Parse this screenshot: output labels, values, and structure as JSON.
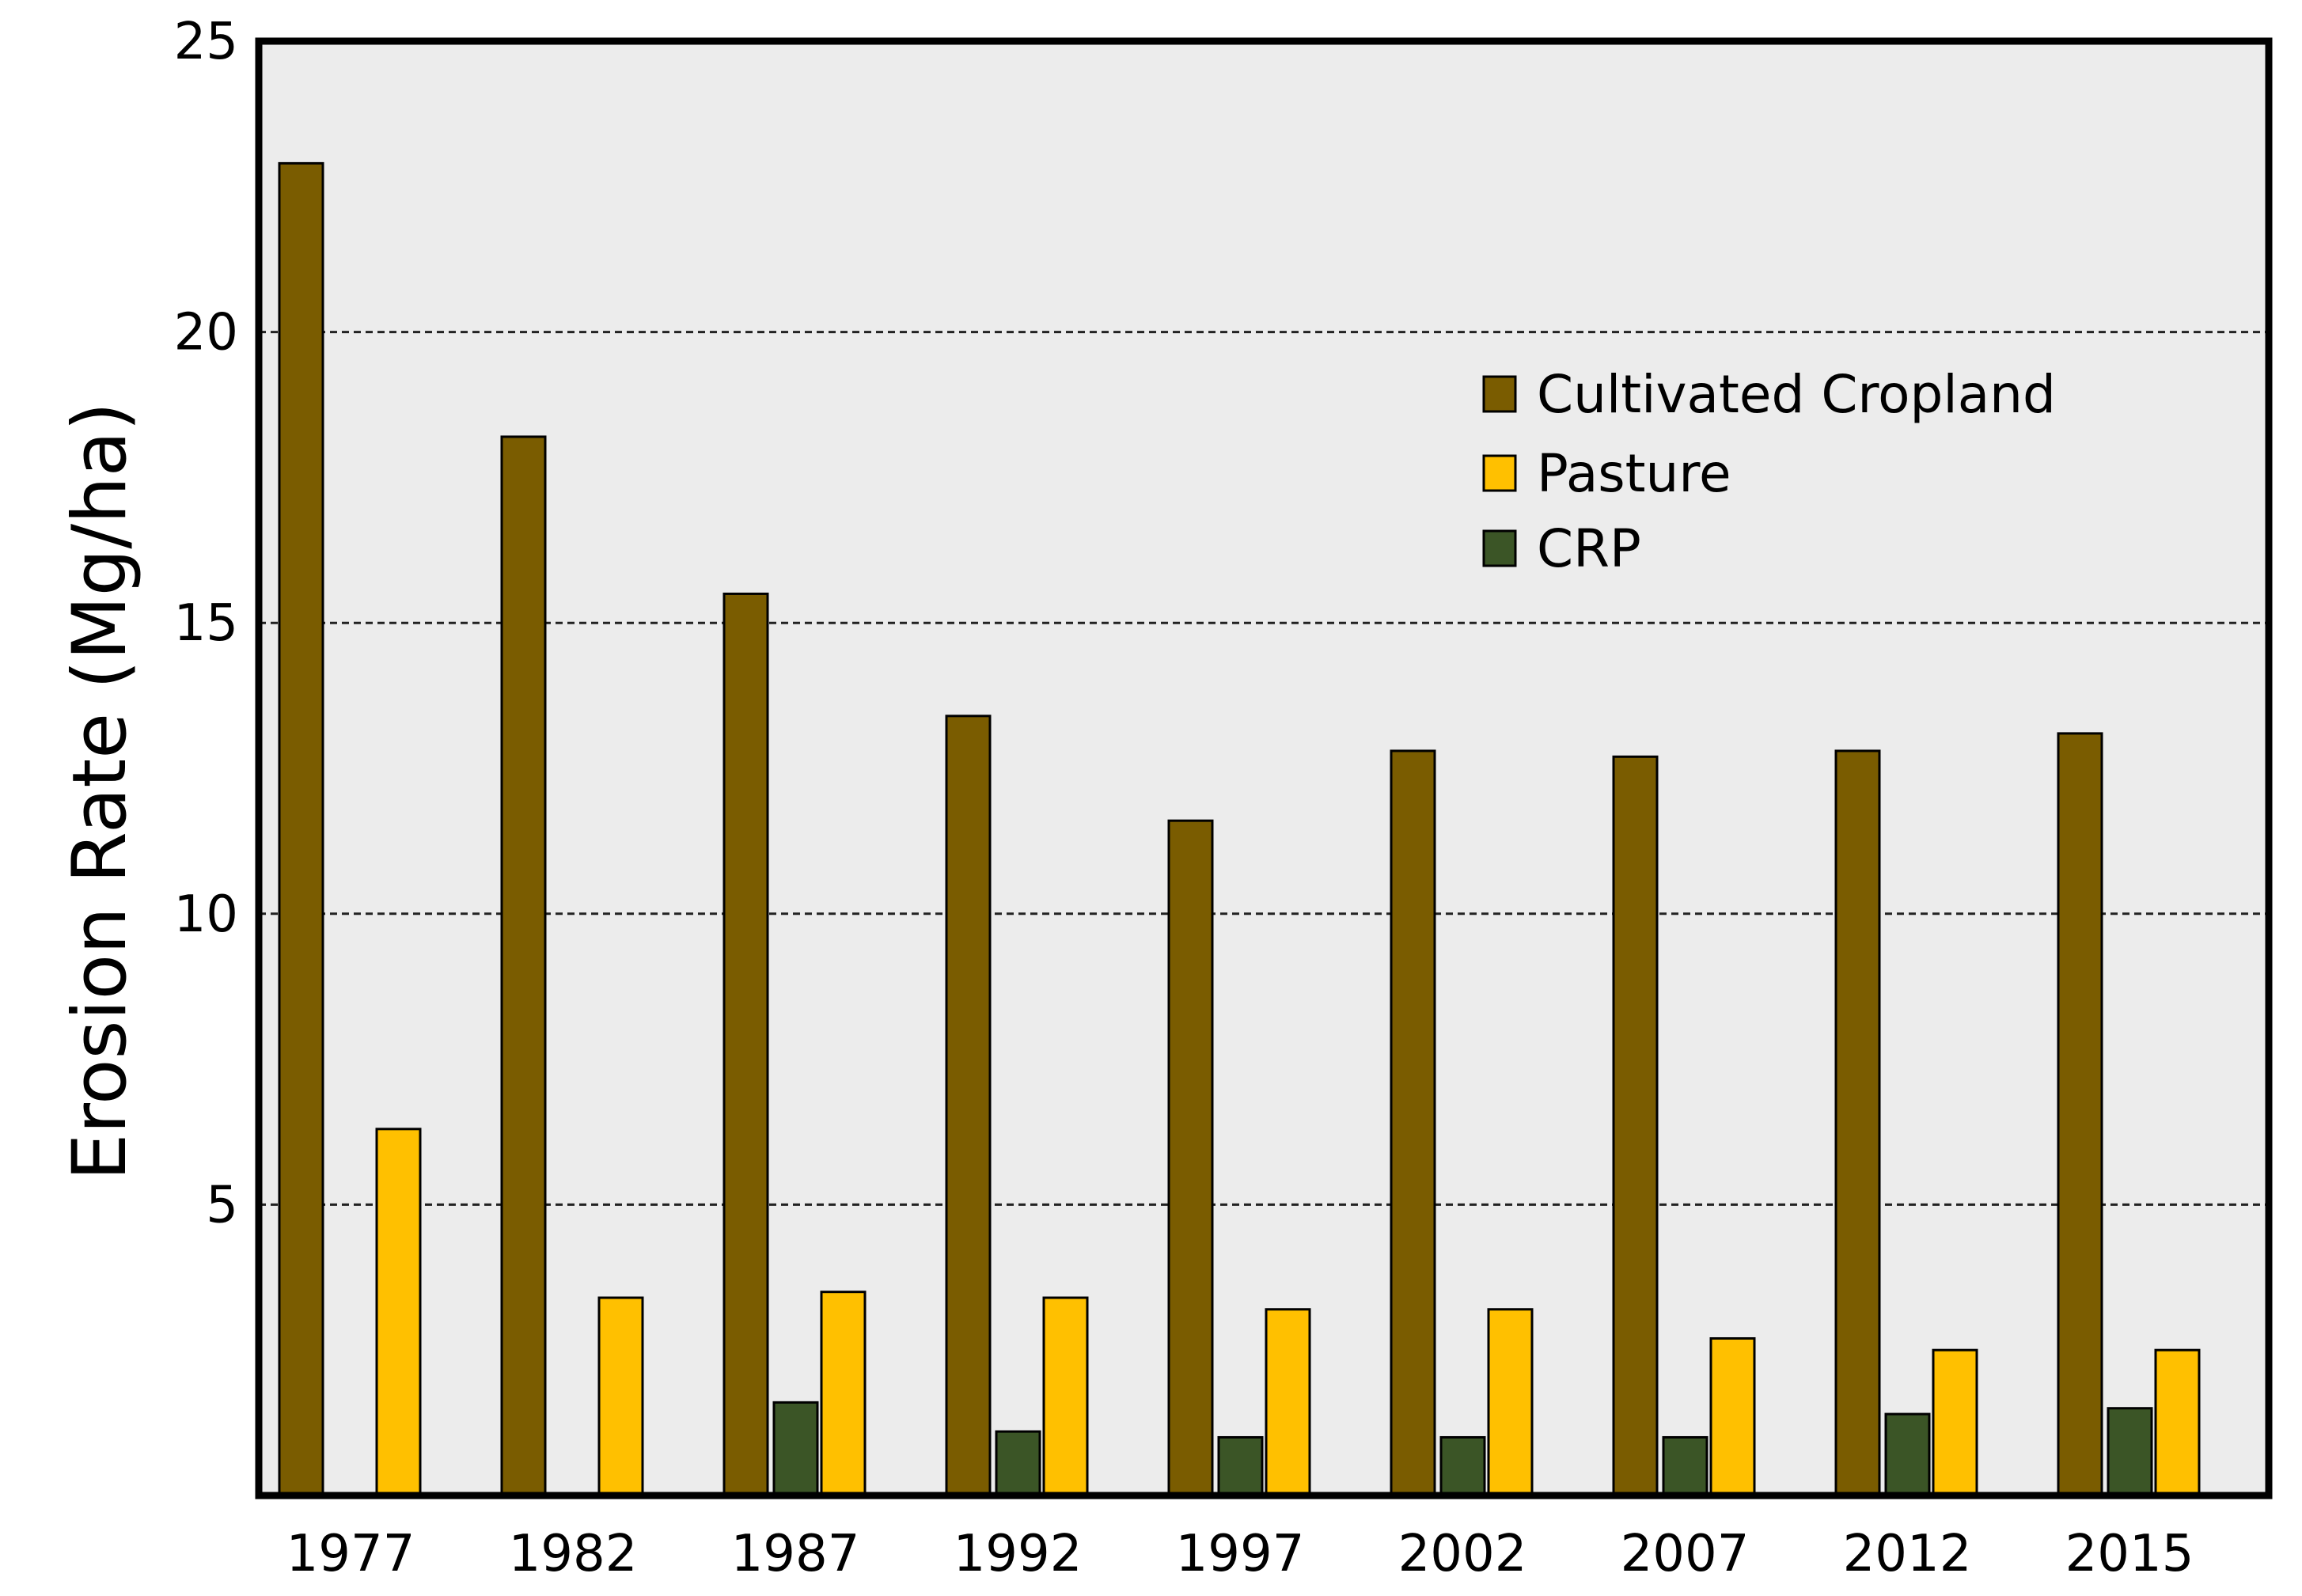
{
  "chart_data": {
    "type": "bar",
    "title": "",
    "xlabel": "",
    "ylabel": "Erosion Rate (Mg/ha)",
    "ylim": [
      0,
      25
    ],
    "yticks": [
      5,
      10,
      15,
      20,
      25
    ],
    "grid": "horizontal-dashed",
    "legend_position": "top-right",
    "background_color": "#ececec",
    "categories": [
      "1977",
      "1982",
      "1987",
      "1992",
      "1997",
      "2002",
      "2007",
      "2012",
      "2015"
    ],
    "series": [
      {
        "name": "Cultivated Cropland",
        "color": "#7a5c00",
        "values": [
          22.9,
          18.2,
          15.5,
          13.4,
          11.6,
          12.8,
          12.7,
          12.8,
          13.1
        ]
      },
      {
        "name": "CRP",
        "color": "#3b5526",
        "values": [
          null,
          null,
          1.6,
          1.1,
          1.0,
          1.0,
          1.0,
          1.4,
          1.5
        ]
      },
      {
        "name": "Pasture",
        "color": "#ffc000",
        "values": [
          6.3,
          3.4,
          3.5,
          3.4,
          3.2,
          3.2,
          2.7,
          2.5,
          2.5
        ]
      }
    ],
    "legend_order": [
      "Cultivated Cropland",
      "Pasture",
      "CRP"
    ]
  }
}
